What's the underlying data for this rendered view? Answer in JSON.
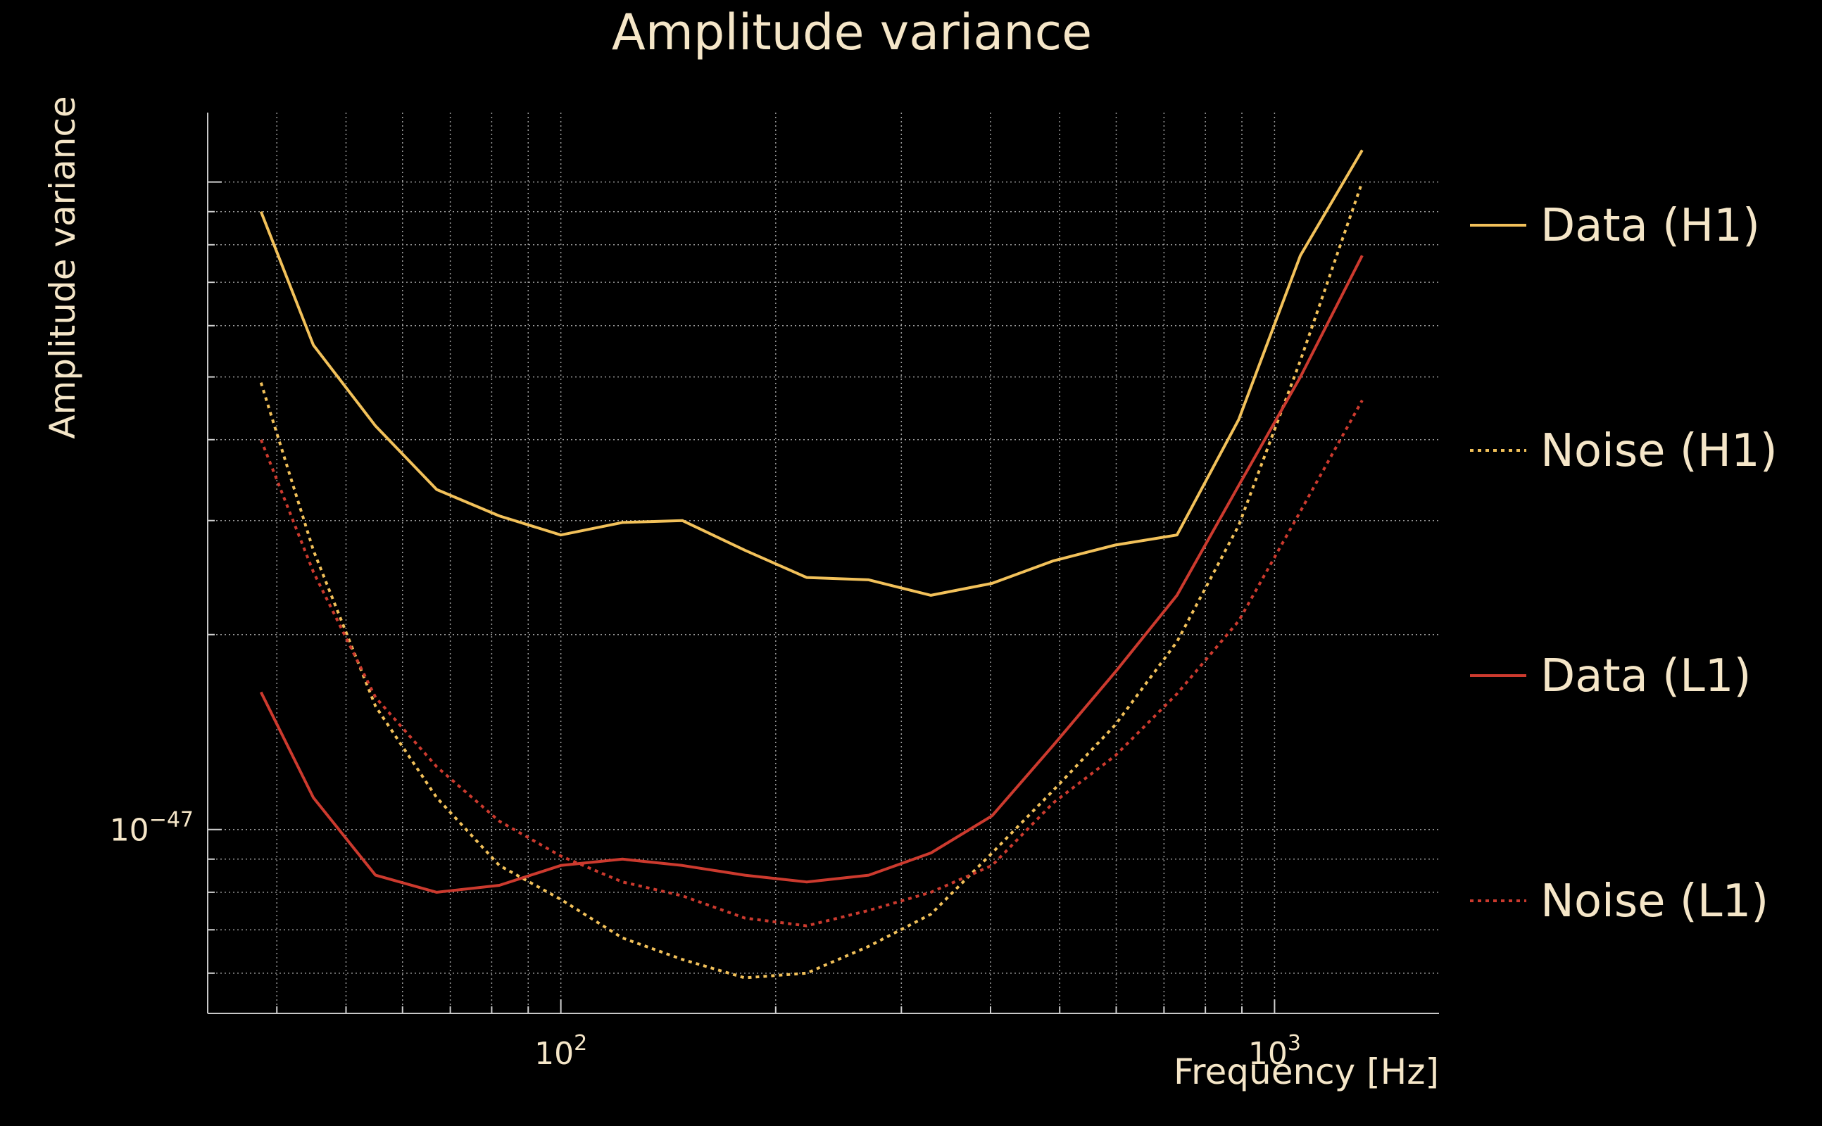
{
  "chart_data": {
    "type": "line",
    "title": "Amplitude variance",
    "xlabel": "Frequency [Hz]",
    "ylabel": "Amplitude variance",
    "xscale": "log",
    "yscale": "log",
    "xlim": [
      32,
      1700
    ],
    "ylim": [
      5.2e-48,
      1.28e-46
    ],
    "grid": true,
    "legend_placement": "right",
    "x_ticks": [
      {
        "value": 100,
        "base": "10",
        "exp": "2"
      },
      {
        "value": 1000,
        "base": "10",
        "exp": "3"
      }
    ],
    "y_ticks": [
      {
        "value": 1e-47,
        "base": "10",
        "exp": "−47"
      }
    ],
    "x": [
      38,
      45,
      55,
      67,
      82,
      100,
      122,
      148,
      181,
      221,
      270,
      330,
      402,
      490,
      598,
      730,
      891,
      1087,
      1327
    ],
    "series": [
      {
        "name": "Data (H1)",
        "color": "#f2c15a",
        "dash": "solid",
        "values": [
          9e-47,
          5.6e-47,
          4.2e-47,
          3.35e-47,
          3.05e-47,
          2.85e-47,
          2.98e-47,
          3e-47,
          2.7e-47,
          2.45e-47,
          2.43e-47,
          2.3e-47,
          2.4e-47,
          2.6e-47,
          2.75e-47,
          2.85e-47,
          4.3e-47,
          7.7e-47,
          1.12e-46
        ]
      },
      {
        "name": "Noise (H1)",
        "color": "#f2c15a",
        "dash": "dotted",
        "values": [
          4.9e-47,
          2.7e-47,
          1.55e-47,
          1.12e-47,
          8.8e-48,
          7.8e-48,
          6.8e-48,
          6.3e-48,
          5.9e-48,
          6e-48,
          6.6e-48,
          7.4e-48,
          9.2e-48,
          1.15e-47,
          1.45e-47,
          1.95e-47,
          2.95e-47,
          5.3e-47,
          1e-46
        ]
      },
      {
        "name": "Data (L1)",
        "color": "#cc3a2e",
        "dash": "solid",
        "values": [
          1.63e-47,
          1.12e-47,
          8.5e-48,
          8e-48,
          8.2e-48,
          8.8e-48,
          9e-48,
          8.8e-48,
          8.5e-48,
          8.3e-48,
          8.5e-48,
          9.2e-48,
          1.05e-47,
          1.35e-47,
          1.75e-47,
          2.3e-47,
          3.4e-47,
          5e-47,
          7.7e-47
        ]
      },
      {
        "name": "Noise (L1)",
        "color": "#cc3a2e",
        "dash": "dotted",
        "values": [
          4e-47,
          2.5e-47,
          1.6e-47,
          1.25e-47,
          1.03e-47,
          9.1e-48,
          8.3e-48,
          7.9e-48,
          7.3e-48,
          7.1e-48,
          7.5e-48,
          8e-48,
          8.8e-48,
          1.1e-47,
          1.3e-47,
          1.62e-47,
          2.1e-47,
          3.1e-47,
          4.6e-47
        ]
      }
    ]
  }
}
